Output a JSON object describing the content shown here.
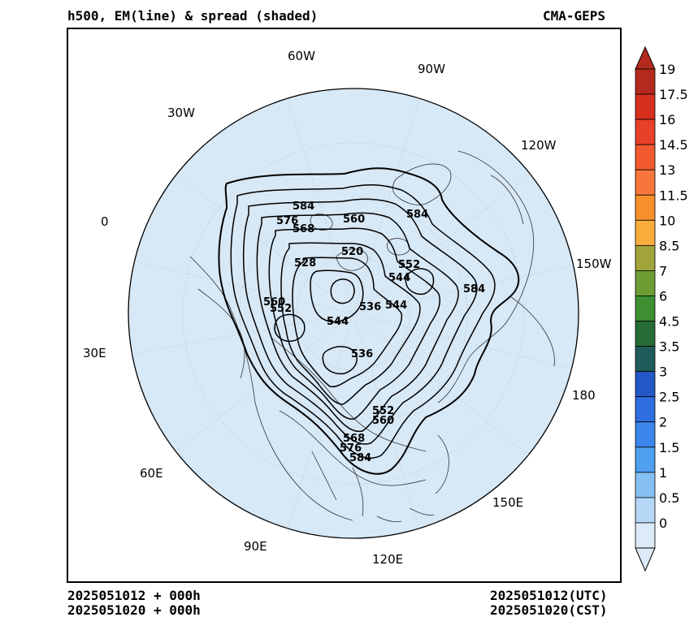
{
  "title_left": "h500, EM(line) & spread (shaded)",
  "title_right": "CMA-GEPS",
  "footer": {
    "left_line1": "2025051012 + 000h",
    "left_line2": "2025051020 + 000h",
    "right_line1": "2025051012(UTC)",
    "right_line2": "2025051020(CST)"
  },
  "longitude_labels": [
    "60W",
    "90W",
    "30W",
    "120W",
    "0",
    "150W",
    "30E",
    "180",
    "60E",
    "150E",
    "90E",
    "120E"
  ],
  "contour_labels": [
    "584",
    "560",
    "576",
    "568",
    "584",
    "520",
    "528",
    "552",
    "544",
    "584",
    "560",
    "552",
    "536",
    "544",
    "544",
    "536",
    "552",
    "560",
    "568",
    "576",
    "584"
  ],
  "colorbar": {
    "ticks": [
      "19",
      "17.5",
      "16",
      "14.5",
      "13",
      "11.5",
      "10",
      "8.5",
      "7",
      "6",
      "4.5",
      "3.5",
      "3",
      "2.5",
      "2",
      "1.5",
      "1",
      "0.5",
      "0"
    ],
    "colors": [
      "#b52a1e",
      "#d8301f",
      "#e9402a",
      "#f35a30",
      "#f7763b",
      "#f78f2a",
      "#f9ad3c",
      "#a0a43a",
      "#6d9e36",
      "#3d8f32",
      "#256b35",
      "#1f5b5a",
      "#2458c8",
      "#2e6ee0",
      "#3c85ea",
      "#4fa0ef",
      "#86c0f2",
      "#b6d8f6",
      "#ddeaf7"
    ]
  },
  "map": {
    "ocean_fill": "#d7e8f6",
    "spread_value_shown": "0"
  }
}
